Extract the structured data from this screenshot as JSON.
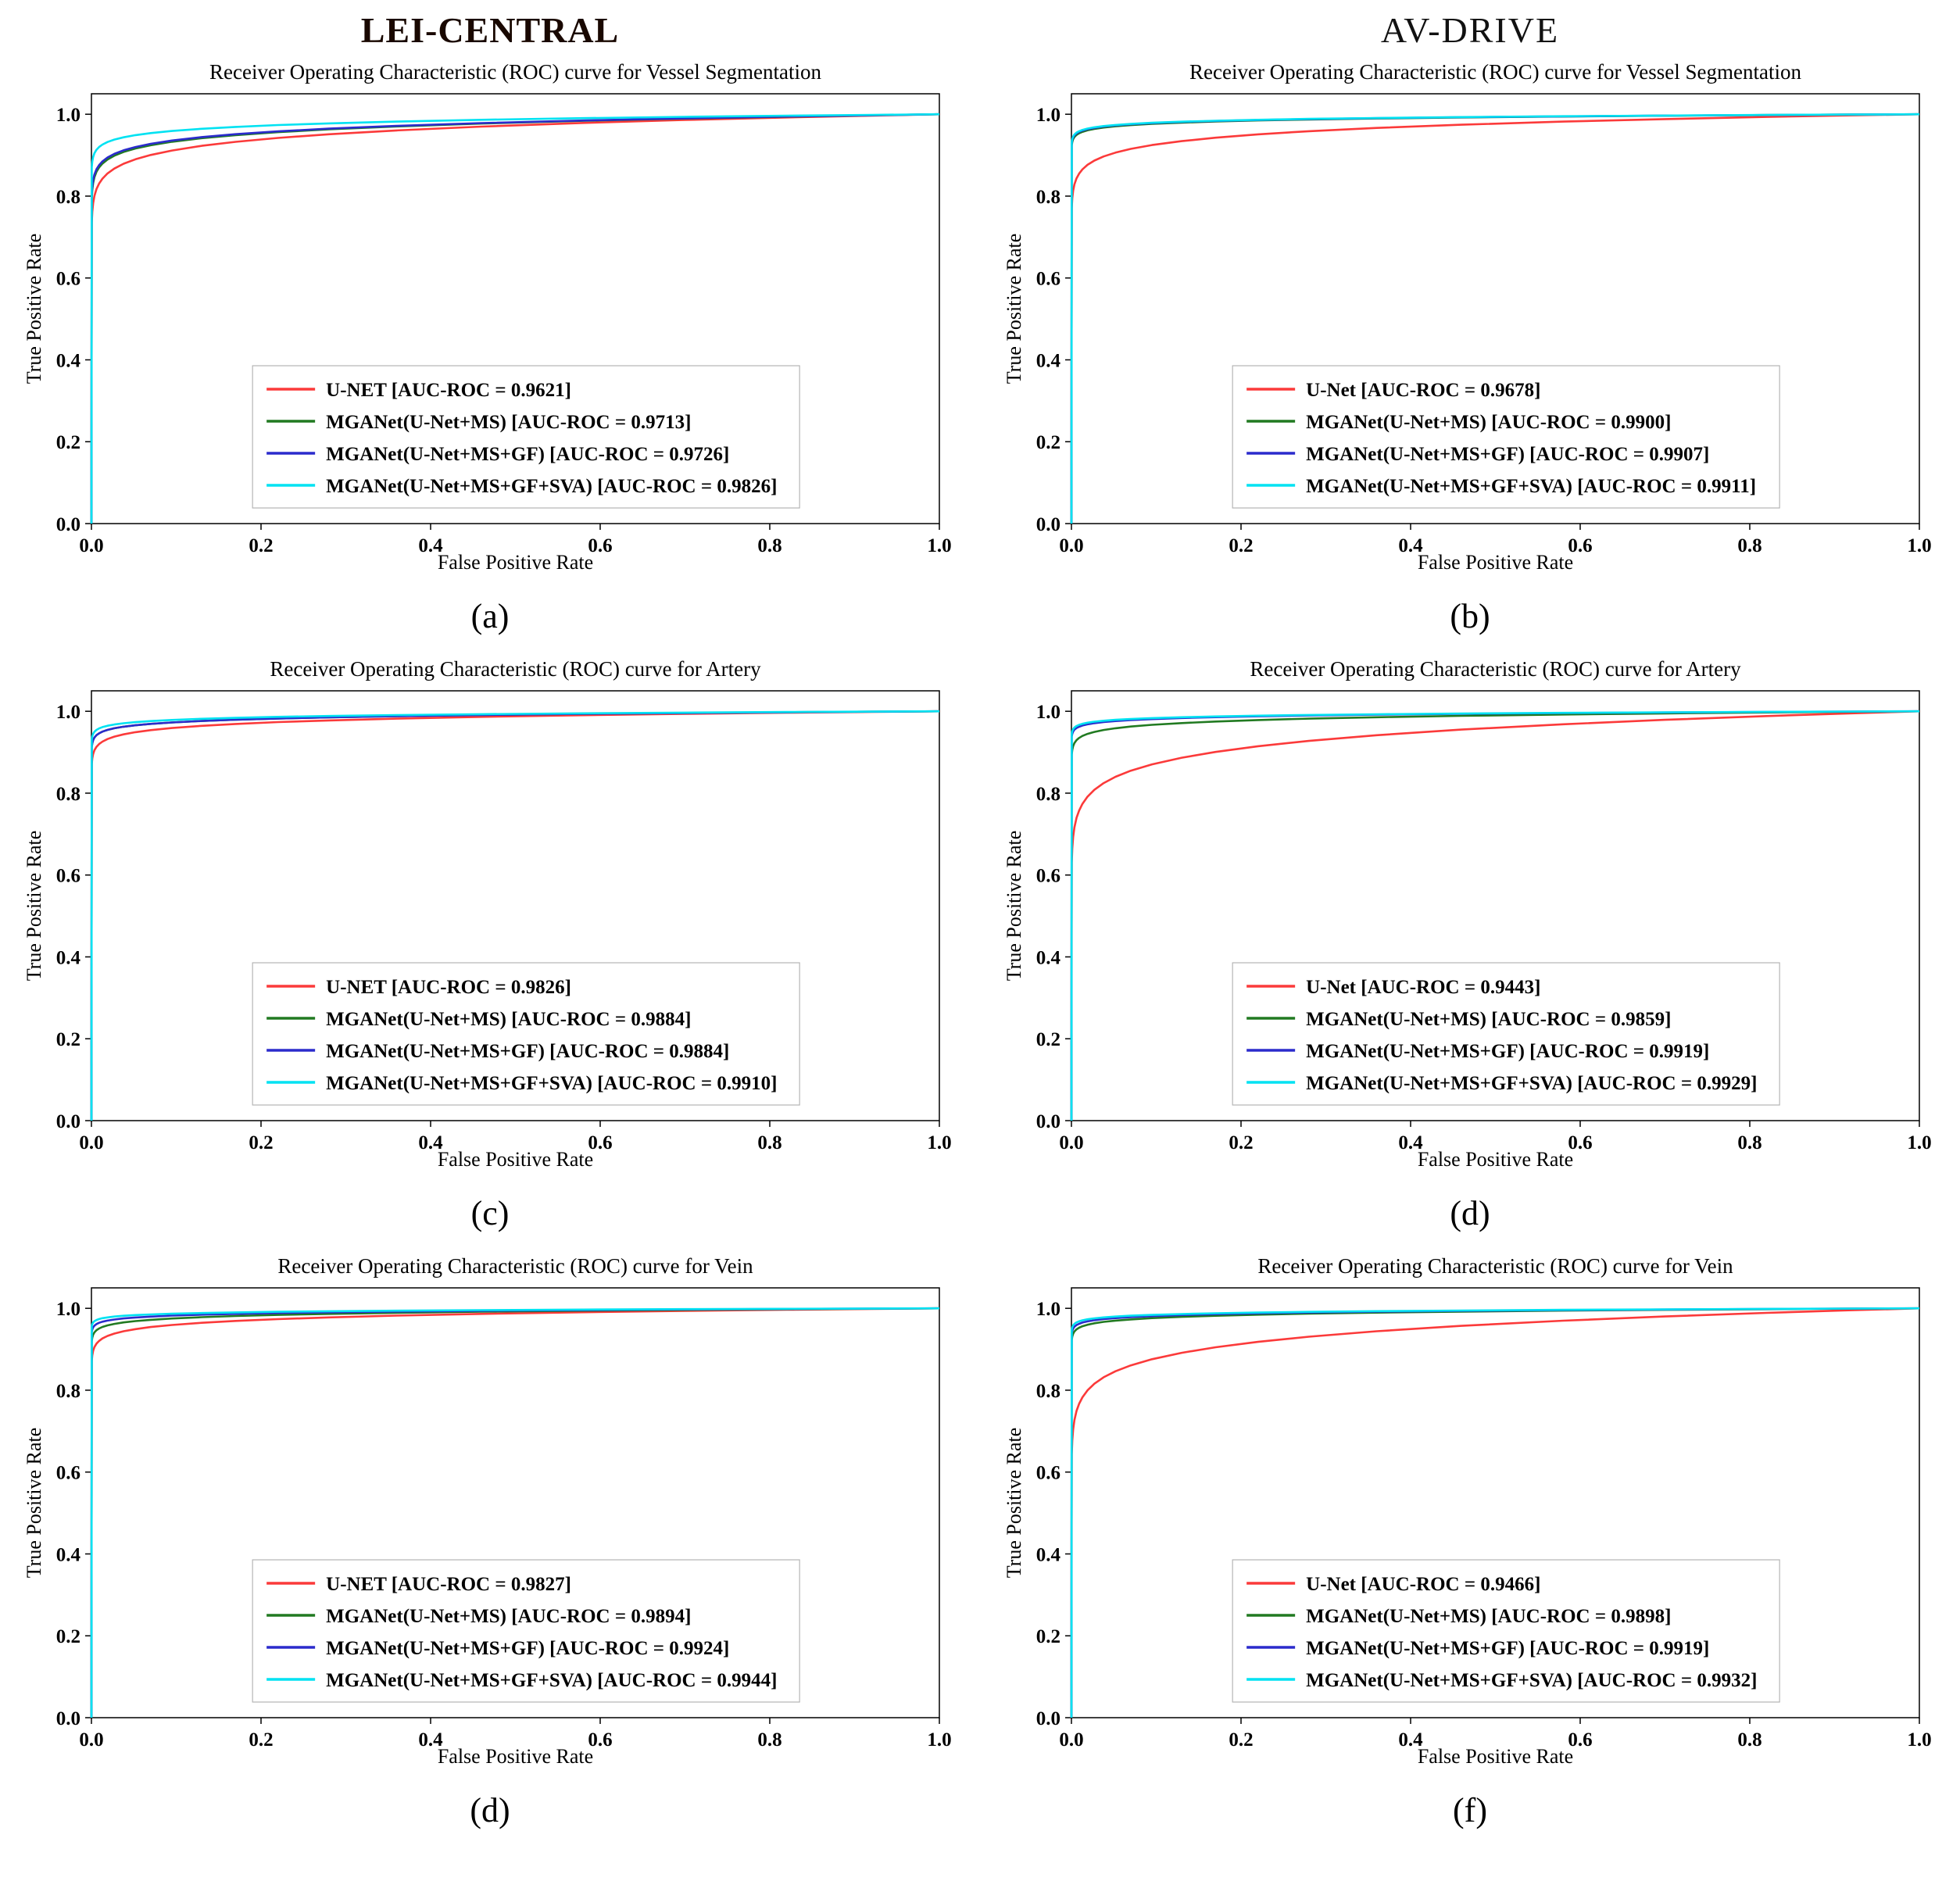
{
  "page": {
    "left_column_title": "LEI-CENTRAL",
    "right_column_title": "AV-DRIVE"
  },
  "chart_data": [
    {
      "id": "a",
      "caption": "(a)",
      "type": "line",
      "title": "Receiver Operating Characteristic (ROC) curve for Vessel Segmentation",
      "xlabel": "False Positive Rate",
      "ylabel": "True Positive Rate",
      "xlim": [
        0.0,
        1.0
      ],
      "ylim": [
        0.0,
        1.05
      ],
      "xticks": [
        0.0,
        0.2,
        0.4,
        0.6,
        0.8,
        1.0
      ],
      "yticks": [
        0.0,
        0.2,
        0.4,
        0.6,
        0.8,
        1.0
      ],
      "grid": false,
      "legend_position": "lower center",
      "series": [
        {
          "name": "U-NET [AUC-ROC = 0.9621]",
          "auc": 0.9621,
          "color": "#fb3a3a"
        },
        {
          "name": "MGANet(U-Net+MS) [AUC-ROC = 0.9713]",
          "auc": 0.9713,
          "color": "#217a21"
        },
        {
          "name": "MGANet(U-Net+MS+GF) [AUC-ROC = 0.9726]",
          "auc": 0.9726,
          "color": "#2b2bcc"
        },
        {
          "name": "MGANet(U-Net+MS+GF+SVA) [AUC-ROC = 0.9826]",
          "auc": 0.9826,
          "color": "#00e2f2"
        }
      ]
    },
    {
      "id": "b",
      "caption": "(b)",
      "type": "line",
      "title": "Receiver Operating Characteristic (ROC) curve for Vessel Segmentation",
      "xlabel": "False Positive Rate",
      "ylabel": "True Positive Rate",
      "xlim": [
        0.0,
        1.0
      ],
      "ylim": [
        0.0,
        1.05
      ],
      "xticks": [
        0.0,
        0.2,
        0.4,
        0.6,
        0.8,
        1.0
      ],
      "yticks": [
        0.0,
        0.2,
        0.4,
        0.6,
        0.8,
        1.0
      ],
      "grid": false,
      "legend_position": "lower center",
      "series": [
        {
          "name": "U-Net [AUC-ROC = 0.9678]",
          "auc": 0.9678,
          "color": "#fb3a3a"
        },
        {
          "name": "MGANet(U-Net+MS) [AUC-ROC = 0.9900]",
          "auc": 0.99,
          "color": "#217a21"
        },
        {
          "name": "MGANet(U-Net+MS+GF) [AUC-ROC = 0.9907]",
          "auc": 0.9907,
          "color": "#2b2bcc"
        },
        {
          "name": "MGANet(U-Net+MS+GF+SVA) [AUC-ROC = 0.9911]",
          "auc": 0.9911,
          "color": "#00e2f2"
        }
      ]
    },
    {
      "id": "c",
      "caption": "(c)",
      "type": "line",
      "title": "Receiver Operating Characteristic (ROC) curve for Artery",
      "xlabel": "False Positive Rate",
      "ylabel": "True Positive Rate",
      "xlim": [
        0.0,
        1.0
      ],
      "ylim": [
        0.0,
        1.05
      ],
      "xticks": [
        0.0,
        0.2,
        0.4,
        0.6,
        0.8,
        1.0
      ],
      "yticks": [
        0.0,
        0.2,
        0.4,
        0.6,
        0.8,
        1.0
      ],
      "grid": false,
      "legend_position": "lower center",
      "series": [
        {
          "name": "U-NET [AUC-ROC = 0.9826]",
          "auc": 0.9826,
          "color": "#fb3a3a"
        },
        {
          "name": "MGANet(U-Net+MS) [AUC-ROC = 0.9884]",
          "auc": 0.9884,
          "color": "#217a21"
        },
        {
          "name": "MGANet(U-Net+MS+GF) [AUC-ROC = 0.9884]",
          "auc": 0.9884,
          "color": "#2b2bcc"
        },
        {
          "name": "MGANet(U-Net+MS+GF+SVA) [AUC-ROC = 0.9910]",
          "auc": 0.991,
          "color": "#00e2f2"
        }
      ]
    },
    {
      "id": "d-right",
      "caption": "(d)",
      "type": "line",
      "title": "Receiver Operating Characteristic (ROC) curve for Artery",
      "xlabel": "False Positive Rate",
      "ylabel": "True Positive Rate",
      "xlim": [
        0.0,
        1.0
      ],
      "ylim": [
        0.0,
        1.05
      ],
      "xticks": [
        0.0,
        0.2,
        0.4,
        0.6,
        0.8,
        1.0
      ],
      "yticks": [
        0.0,
        0.2,
        0.4,
        0.6,
        0.8,
        1.0
      ],
      "grid": false,
      "legend_position": "lower center",
      "series": [
        {
          "name": "U-Net [AUC-ROC = 0.9443]",
          "auc": 0.9443,
          "color": "#fb3a3a"
        },
        {
          "name": "MGANet(U-Net+MS) [AUC-ROC = 0.9859]",
          "auc": 0.9859,
          "color": "#217a21"
        },
        {
          "name": "MGANet(U-Net+MS+GF) [AUC-ROC = 0.9919]",
          "auc": 0.9919,
          "color": "#2b2bcc"
        },
        {
          "name": "MGANet(U-Net+MS+GF+SVA) [AUC-ROC = 0.9929]",
          "auc": 0.9929,
          "color": "#00e2f2"
        }
      ]
    },
    {
      "id": "d-left",
      "caption": "(d)",
      "type": "line",
      "title": "Receiver Operating Characteristic (ROC) curve for Vein",
      "xlabel": "False Positive Rate",
      "ylabel": "True Positive Rate",
      "xlim": [
        0.0,
        1.0
      ],
      "ylim": [
        0.0,
        1.05
      ],
      "xticks": [
        0.0,
        0.2,
        0.4,
        0.6,
        0.8,
        1.0
      ],
      "yticks": [
        0.0,
        0.2,
        0.4,
        0.6,
        0.8,
        1.0
      ],
      "grid": false,
      "legend_position": "lower center",
      "series": [
        {
          "name": "U-NET [AUC-ROC = 0.9827]",
          "auc": 0.9827,
          "color": "#fb3a3a"
        },
        {
          "name": "MGANet(U-Net+MS) [AUC-ROC = 0.9894]",
          "auc": 0.9894,
          "color": "#217a21"
        },
        {
          "name": "MGANet(U-Net+MS+GF) [AUC-ROC = 0.9924]",
          "auc": 0.9924,
          "color": "#2b2bcc"
        },
        {
          "name": "MGANet(U-Net+MS+GF+SVA) [AUC-ROC = 0.9944]",
          "auc": 0.9944,
          "color": "#00e2f2"
        }
      ]
    },
    {
      "id": "f",
      "caption": "(f)",
      "type": "line",
      "title": "Receiver Operating Characteristic (ROC) curve for Vein",
      "xlabel": "False Positive Rate",
      "ylabel": "True Positive Rate",
      "xlim": [
        0.0,
        1.0
      ],
      "ylim": [
        0.0,
        1.05
      ],
      "xticks": [
        0.0,
        0.2,
        0.4,
        0.6,
        0.8,
        1.0
      ],
      "yticks": [
        0.0,
        0.2,
        0.4,
        0.6,
        0.8,
        1.0
      ],
      "grid": false,
      "legend_position": "lower center",
      "series": [
        {
          "name": "U-Net [AUC-ROC = 0.9466]",
          "auc": 0.9466,
          "color": "#fb3a3a"
        },
        {
          "name": "MGANet(U-Net+MS) [AUC-ROC = 0.9898]",
          "auc": 0.9898,
          "color": "#217a21"
        },
        {
          "name": "MGANet(U-Net+MS+GF) [AUC-ROC = 0.9919]",
          "auc": 0.9919,
          "color": "#2b2bcc"
        },
        {
          "name": "MGANet(U-Net+MS+GF+SVA) [AUC-ROC = 0.9932]",
          "auc": 0.9932,
          "color": "#00e2f2"
        }
      ]
    }
  ]
}
